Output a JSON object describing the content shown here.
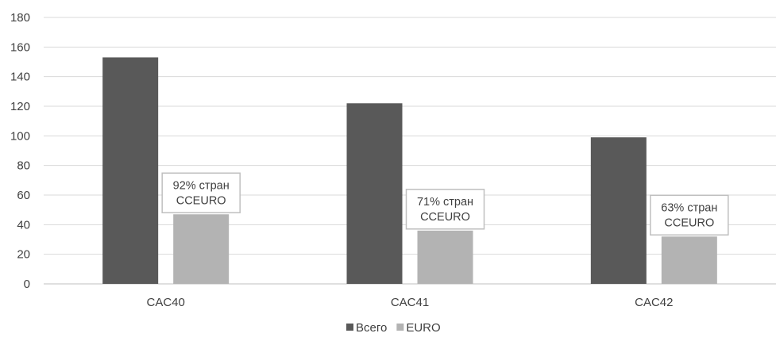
{
  "chart_data": {
    "type": "bar",
    "categories": [
      "CAC40",
      "CAC41",
      "CAC42"
    ],
    "series": [
      {
        "name": "Всего",
        "values": [
          153,
          122,
          99
        ],
        "color": "#595959"
      },
      {
        "name": "EURO",
        "values": [
          47,
          36,
          32
        ],
        "color": "#b3b3b3"
      }
    ],
    "ylim": [
      0,
      180
    ],
    "yticks": [
      0,
      20,
      40,
      60,
      80,
      100,
      120,
      140,
      160,
      180
    ],
    "grid": true,
    "legend": "bottom",
    "annotations": [
      {
        "category": "CAC40",
        "series": "EURO",
        "lines": [
          "92% стран",
          "CCEURO"
        ]
      },
      {
        "category": "CAC41",
        "series": "EURO",
        "lines": [
          "71% стран",
          "CCEURO"
        ]
      },
      {
        "category": "CAC42",
        "series": "EURO",
        "lines": [
          "63% стран",
          "CCEURO"
        ]
      }
    ]
  }
}
